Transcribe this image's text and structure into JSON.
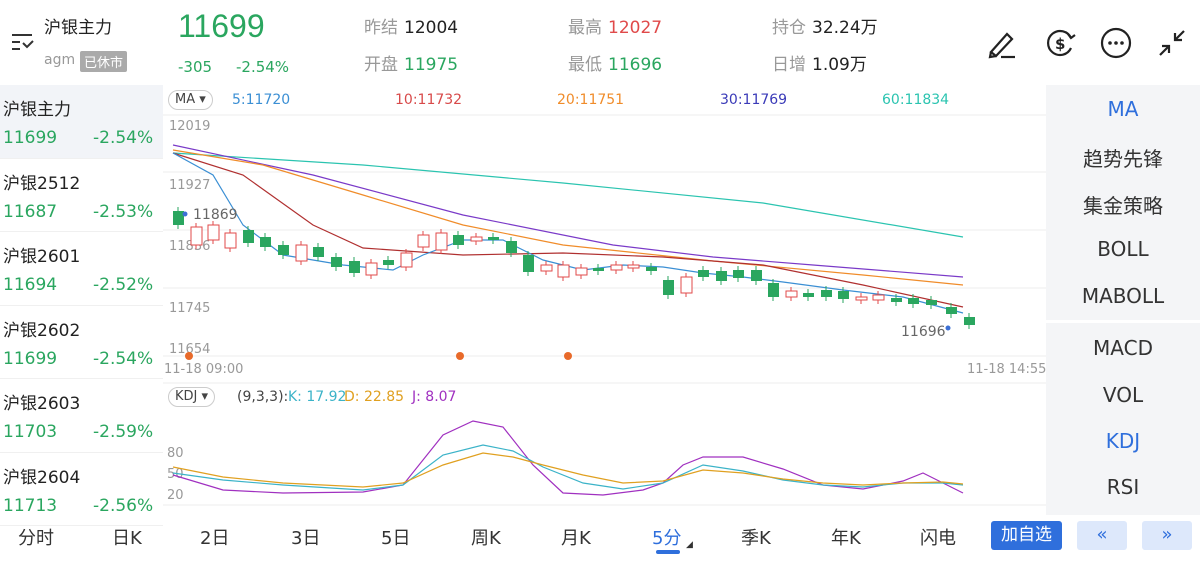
{
  "header": {
    "symbol_name": "沪银主力",
    "symbol_code": "agm",
    "status": "已休市",
    "last_price": "11699",
    "change": "-305",
    "change_pct": "-2.54%",
    "stats": {
      "prev_settle_label": "昨结",
      "prev_settle": "12004",
      "open_label": "开盘",
      "open": "11975",
      "high_label": "最高",
      "high": "12027",
      "low_label": "最低",
      "low": "11696",
      "oi_label": "持仓",
      "oi": "32.24万",
      "oi_chg_label": "日增",
      "oi_chg": "1.09万"
    },
    "icons": [
      "draw-icon",
      "currency-icon",
      "more-icon",
      "collapse-icon"
    ]
  },
  "sidebar": {
    "items": [
      {
        "name": "沪银主力",
        "price": "11699",
        "pct": "-2.54%"
      },
      {
        "name": "沪银2512",
        "price": "11687",
        "pct": "-2.53%"
      },
      {
        "name": "沪银2601",
        "price": "11694",
        "pct": "-2.52%"
      },
      {
        "name": "沪银2602",
        "price": "11699",
        "pct": "-2.54%"
      },
      {
        "name": "沪银2603",
        "price": "11703",
        "pct": "-2.59%"
      },
      {
        "name": "沪银2604",
        "price": "11713",
        "pct": "-2.56%"
      }
    ]
  },
  "right_panel": {
    "items": [
      "MA",
      "趋势先锋",
      "集金策略",
      "BOLL",
      "MABOLL",
      "MACD",
      "VOL",
      "KDJ",
      "RSI"
    ],
    "active": [
      "MA",
      "KDJ"
    ]
  },
  "main_chart": {
    "indicator": "MA",
    "ma": [
      {
        "label": "5:11720",
        "color": "#3b8fd4"
      },
      {
        "label": "10:11732",
        "color": "#d84a4a"
      },
      {
        "label": "20:11751",
        "color": "#f08c2a"
      },
      {
        "label": "30:11769",
        "color": "#3a3ab8"
      },
      {
        "label": "60:11834",
        "color": "#2bc4b0"
      }
    ],
    "y_ticks": [
      "12019",
      "11927",
      "11836",
      "11745",
      "11654"
    ],
    "max_label": "11869",
    "min_label": "11696",
    "time_start": "11-18 09:00",
    "time_end": "11-18 14:55"
  },
  "sub_chart": {
    "indicator": "KDJ",
    "params": "(9,3,3):",
    "k": "K: 17.92",
    "d": "D: 22.85",
    "j": "J: 8.07",
    "y_ticks": [
      "80",
      "50",
      "20"
    ]
  },
  "tabs": [
    "分时",
    "日K",
    "2日",
    "3日",
    "5日",
    "周K",
    "月K",
    "5分",
    "季K",
    "年K",
    "闪电"
  ],
  "active_tab": "5分",
  "add_button": "加自选",
  "prev_button": "«",
  "next_button": "»",
  "colors": {
    "up": "#e04a4a",
    "down": "#2aa65f",
    "accent": "#2f6fdc"
  }
}
